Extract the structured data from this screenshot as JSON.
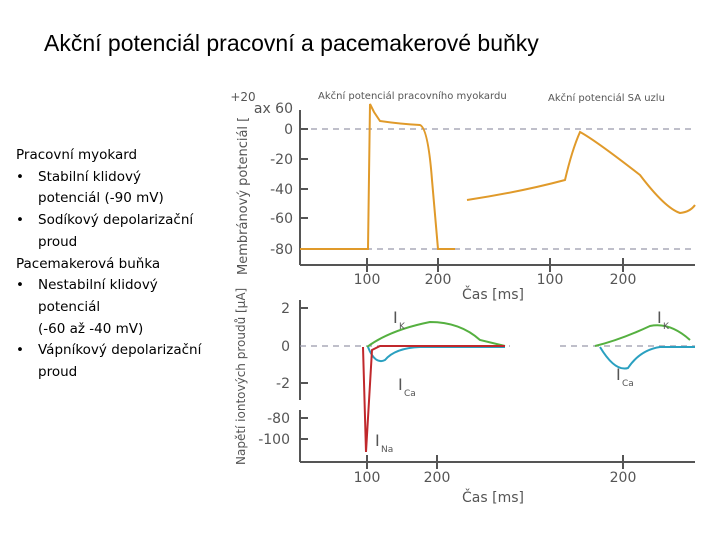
{
  "title": "Akční potenciál pracovní a pacemakerové buňky",
  "notes": [
    {
      "text": "Pracovní myokard",
      "level": 0
    },
    {
      "text": "Stabilní klidový",
      "level": 1,
      "bullet": "•"
    },
    {
      "text": "potenciál (-90 mV)",
      "level": 2
    },
    {
      "text": "Sodíkový depolarizační",
      "level": 1,
      "bullet": "•"
    },
    {
      "text": "proud",
      "level": 2
    },
    {
      "text": "Pacemakerová buňka",
      "level": 0
    },
    {
      "text": "Nestabilní klidový",
      "level": 1,
      "bullet": "•"
    },
    {
      "text": "potenciál",
      "level": 2
    },
    {
      "text": "(-60 až -40 mV)",
      "level": 2
    },
    {
      "text": "Vápníkový depolarizační",
      "level": 1,
      "bullet": "•"
    },
    {
      "text": "proud",
      "level": 2
    }
  ],
  "figure": {
    "top_label": "+20",
    "panel_myocard": "Akční potenciál pracovního myokardu",
    "panel_sa": "Akční potenciál SA uzlu",
    "upper": {
      "ylabel": "Membránový potenciál [",
      "yticks": [
        "ax 60",
        "0",
        "-20",
        "-40",
        "-60",
        "-80"
      ],
      "xticks": [
        "100",
        "200",
        "100",
        "200"
      ],
      "xlabel": "Čas [ms]"
    },
    "lower": {
      "ylabel": "Napětí iontových proudů [µA]",
      "yticks": [
        "2",
        "0",
        "-2",
        "-80",
        "-100"
      ],
      "xticks": [
        "100",
        "200",
        "200"
      ],
      "xlabel": "Čas [ms]"
    },
    "currents": [
      {
        "symbol": "I",
        "sub": "K"
      },
      {
        "symbol": "I",
        "sub": "Ca"
      },
      {
        "symbol": "I",
        "sub": "Na"
      },
      {
        "symbol": "I",
        "sub": "K"
      },
      {
        "symbol": "I",
        "sub": "Ca"
      }
    ]
  }
}
